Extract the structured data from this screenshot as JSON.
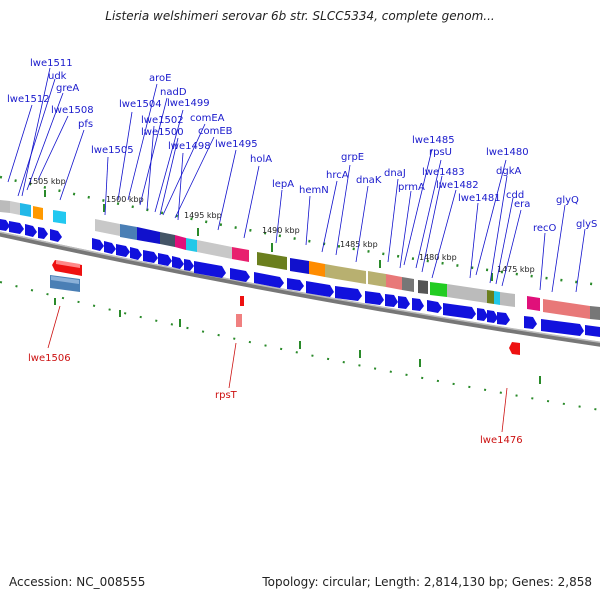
{
  "title": "Listeria welshimeri serovar 6b str. SLCC5334, complete genom...",
  "footer": {
    "accession": "Accession: NC_008555",
    "summary": "Topology: circular; Length: 2,814,130 bp; Genes: 2,858"
  },
  "kbp_labels": [
    "1505 kbp",
    "1500 kbp",
    "1495 kbp",
    "1490 kbp",
    "1485 kbp",
    "1480 kbp",
    "1475 kbp"
  ],
  "gene_labels_blue": [
    "lwe1511",
    "udk",
    "lwe1512",
    "greA",
    "lwe1508",
    "pfs",
    "aroE",
    "nadD",
    "lwe1504",
    "lwe1499",
    "lwe1502",
    "comEA",
    "lwe1500",
    "comEB",
    "lwe1505",
    "lwe1498",
    "lwe1495",
    "holA",
    "lepA",
    "hemN",
    "grpE",
    "hrcA",
    "dnaK",
    "lwe1485",
    "rpsU",
    "dnaJ",
    "lwe1480",
    "lwe1483",
    "prmA",
    "lwe1482",
    "dgkA",
    "lwe1481",
    "cdd",
    "era",
    "recO",
    "glyQ",
    "glyS"
  ],
  "gene_labels_red": [
    "lwe1506",
    "rpsT",
    "lwe1476"
  ]
}
